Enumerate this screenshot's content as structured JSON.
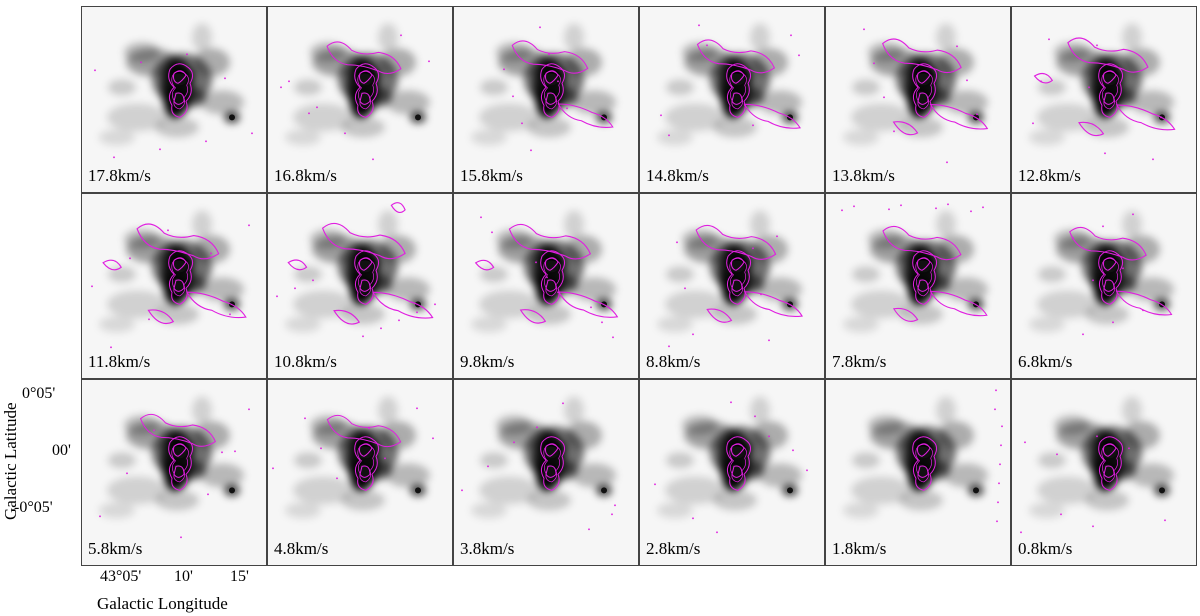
{
  "figure": {
    "x_axis_label": "Galactic Longitude",
    "y_axis_label": "Galactic Latitude",
    "x_tick_labels": [
      "43°05'",
      "10'",
      "15'"
    ],
    "y_tick_labels": [
      "0°05'",
      "00'",
      "-0°05'"
    ],
    "background_colormap": "gray_r",
    "contour_color": "#e020e0",
    "panels": [
      {
        "velocity_label": "17.8km/s",
        "velocity": 17.8
      },
      {
        "velocity_label": "16.8km/s",
        "velocity": 16.8
      },
      {
        "velocity_label": "15.8km/s",
        "velocity": 15.8
      },
      {
        "velocity_label": "14.8km/s",
        "velocity": 14.8
      },
      {
        "velocity_label": "13.8km/s",
        "velocity": 13.8
      },
      {
        "velocity_label": "12.8km/s",
        "velocity": 12.8
      },
      {
        "velocity_label": "11.8km/s",
        "velocity": 11.8
      },
      {
        "velocity_label": "10.8km/s",
        "velocity": 10.8
      },
      {
        "velocity_label": "9.8km/s",
        "velocity": 9.8
      },
      {
        "velocity_label": "8.8km/s",
        "velocity": 8.8
      },
      {
        "velocity_label": "7.8km/s",
        "velocity": 7.8
      },
      {
        "velocity_label": "6.8km/s",
        "velocity": 6.8
      },
      {
        "velocity_label": "5.8km/s",
        "velocity": 5.8
      },
      {
        "velocity_label": "4.8km/s",
        "velocity": 4.8
      },
      {
        "velocity_label": "3.8km/s",
        "velocity": 3.8
      },
      {
        "velocity_label": "2.8km/s",
        "velocity": 2.8
      },
      {
        "velocity_label": "1.8km/s",
        "velocity": 1.8
      },
      {
        "velocity_label": "0.8km/s",
        "velocity": 0.8
      }
    ]
  }
}
